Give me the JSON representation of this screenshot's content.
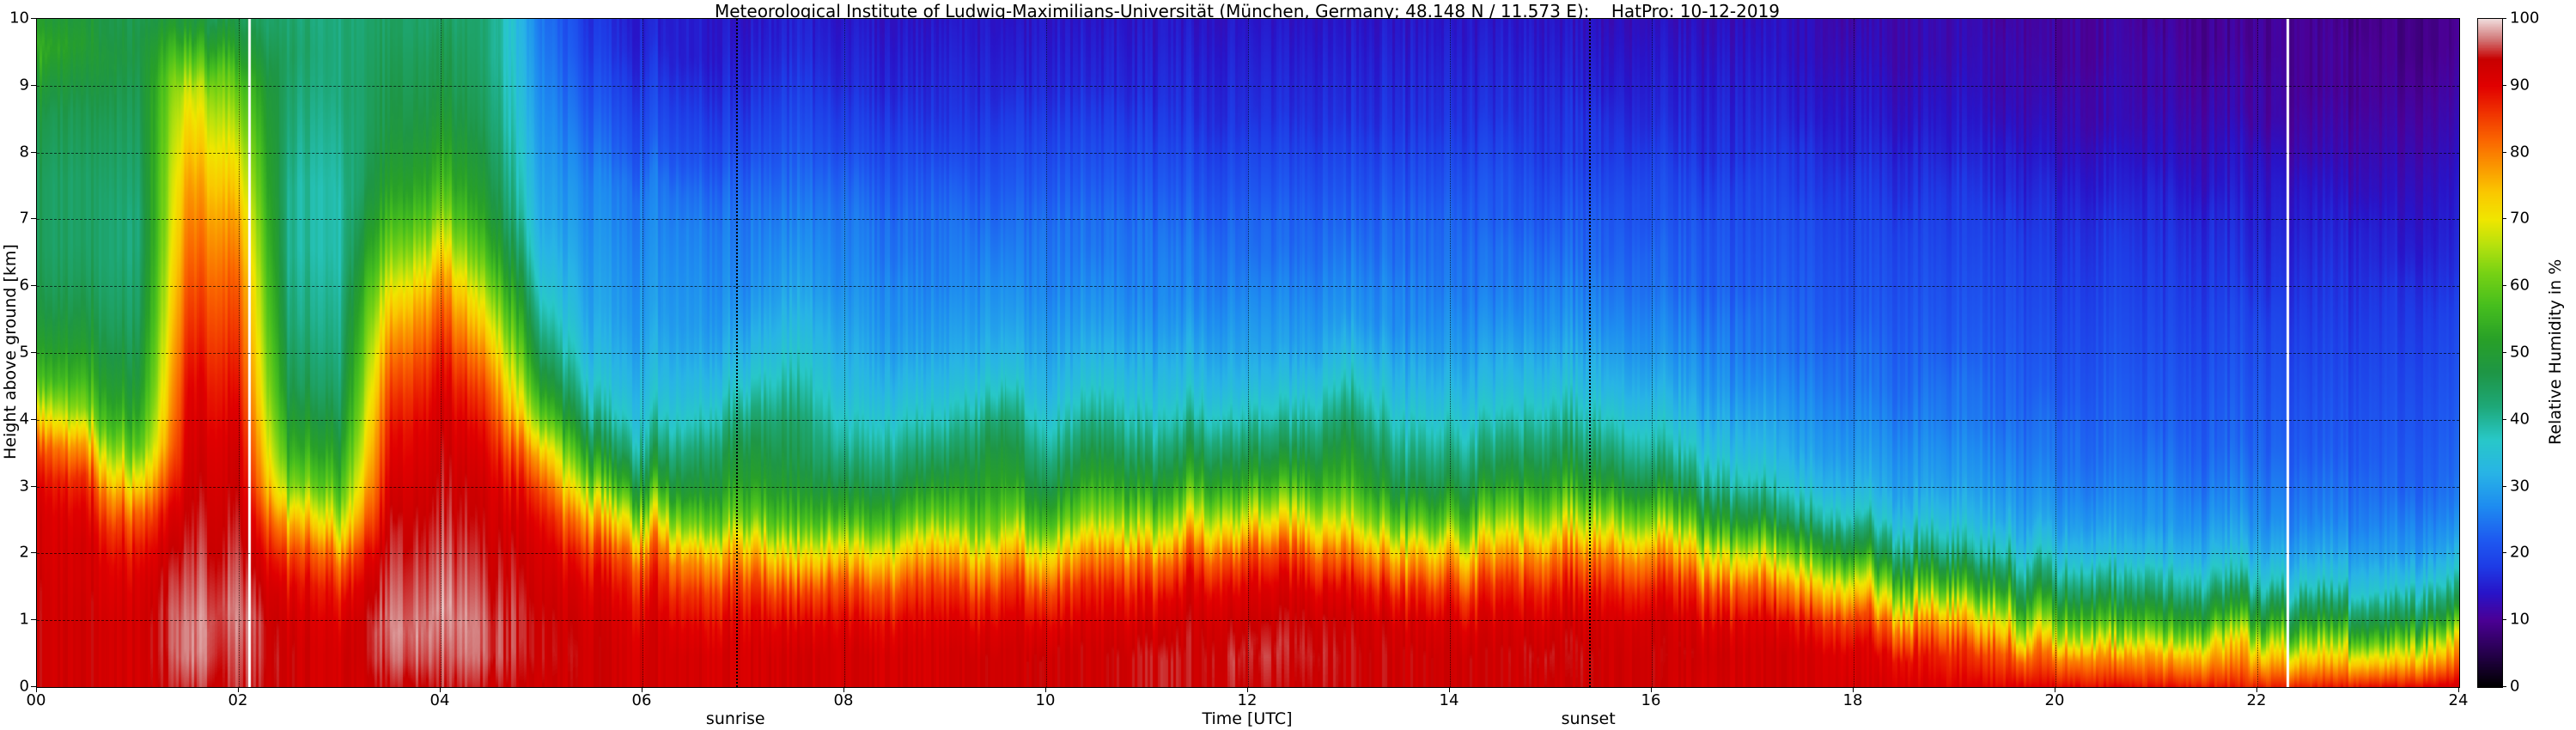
{
  "title": "Meteorological Institute of Ludwig-Maximilians-Universität (München, Germany; 48.148 N / 11.573 E):    HatPro: 10-12-2019",
  "axes": {
    "x_label": "Time [UTC]",
    "y_label": "Height above ground [km]",
    "x_tick_labels": [
      "00",
      "02",
      "04",
      "06",
      "08",
      "10",
      "12",
      "14",
      "16",
      "18",
      "20",
      "22",
      "24"
    ],
    "x_tick_hours": [
      0,
      2,
      4,
      6,
      8,
      10,
      12,
      14,
      16,
      18,
      20,
      22,
      24
    ],
    "y_tick_labels": [
      "0",
      "1",
      "2",
      "3",
      "4",
      "5",
      "6",
      "7",
      "8",
      "9",
      "10"
    ],
    "y_tick_km": [
      0,
      1,
      2,
      3,
      4,
      5,
      6,
      7,
      8,
      9,
      10
    ]
  },
  "colorbar": {
    "label": "Relative Humidity in %",
    "tick_labels": [
      "0",
      "10",
      "20",
      "30",
      "40",
      "50",
      "60",
      "70",
      "80",
      "90",
      "100"
    ],
    "tick_values": [
      0,
      10,
      20,
      30,
      40,
      50,
      60,
      70,
      80,
      90,
      100
    ]
  },
  "annotations": {
    "sunrise": {
      "t": 6.93,
      "label": "sunrise"
    },
    "sunset": {
      "t": 15.38,
      "label": "sunset"
    },
    "gaps": [
      2.1,
      22.3
    ]
  },
  "chart_data": {
    "type": "heatmap",
    "title": "HatPro microwave radiometer relative humidity time-height section, 10-12-2019",
    "xlabel": "Time [UTC]",
    "ylabel": "Height above ground [km]",
    "xlim": [
      0,
      24
    ],
    "ylim": [
      0,
      10
    ],
    "clim": [
      0,
      100
    ],
    "grid": true,
    "x_hours": [
      0,
      0.5,
      1,
      1.5,
      2,
      2.5,
      3,
      3.5,
      4,
      4.5,
      5,
      5.5,
      6,
      6.5,
      7,
      7.5,
      8,
      8.5,
      9,
      9.5,
      10,
      10.5,
      11,
      11.5,
      12,
      12.5,
      13,
      13.5,
      14,
      14.5,
      15,
      15.5,
      16,
      16.5,
      17,
      17.5,
      18,
      18.5,
      19,
      19.5,
      20,
      20.5,
      21,
      21.5,
      22,
      22.5,
      23,
      23.5,
      24
    ],
    "y_km": [
      0,
      0.5,
      1,
      1.5,
      2,
      2.5,
      3,
      3.5,
      4,
      4.5,
      5,
      5.5,
      6,
      6.5,
      7,
      7.5,
      8,
      8.5,
      9,
      9.5,
      10
    ],
    "values_percent": [
      [
        93,
        93,
        93,
        93,
        92,
        92,
        90,
        85,
        72,
        58,
        52,
        48,
        46,
        45,
        45,
        45,
        46,
        47,
        50,
        55,
        50
      ],
      [
        93,
        93,
        93,
        92,
        92,
        90,
        86,
        76,
        62,
        55,
        50,
        47,
        45,
        44,
        44,
        44,
        45,
        46,
        48,
        50,
        48
      ],
      [
        92,
        92,
        92,
        91,
        88,
        82,
        70,
        58,
        52,
        48,
        46,
        44,
        43,
        42,
        42,
        43,
        44,
        45,
        46,
        47,
        46
      ],
      [
        95,
        97,
        97,
        96,
        95,
        94,
        93,
        92,
        91,
        90,
        88,
        86,
        84,
        82,
        80,
        78,
        75,
        72,
        68,
        58,
        48
      ],
      [
        95,
        96,
        97,
        96,
        95,
        94,
        93,
        92,
        90,
        88,
        86,
        84,
        82,
        79,
        76,
        72,
        68,
        63,
        58,
        50,
        45
      ],
      [
        93,
        93,
        92,
        90,
        85,
        76,
        63,
        55,
        50,
        46,
        44,
        42,
        41,
        40,
        40,
        40,
        41,
        42,
        43,
        44,
        43
      ],
      [
        92,
        92,
        91,
        88,
        81,
        68,
        58,
        52,
        47,
        44,
        42,
        41,
        40,
        39,
        39,
        39,
        40,
        41,
        42,
        42,
        42
      ],
      [
        94,
        96,
        97,
        96,
        95,
        94,
        92,
        90,
        88,
        85,
        81,
        76,
        70,
        63,
        57,
        52,
        49,
        47,
        46,
        45,
        44
      ],
      [
        95,
        97,
        98,
        97,
        96,
        95,
        94,
        93,
        92,
        90,
        87,
        83,
        78,
        70,
        62,
        56,
        52,
        49,
        47,
        46,
        44
      ],
      [
        94,
        96,
        96,
        95,
        94,
        93,
        92,
        90,
        87,
        83,
        77,
        70,
        63,
        56,
        51,
        48,
        46,
        44,
        43,
        42,
        42
      ],
      [
        93,
        94,
        94,
        93,
        92,
        90,
        85,
        76,
        62,
        52,
        45,
        40,
        36,
        33,
        31,
        30,
        29,
        28,
        27,
        26,
        25
      ],
      [
        93,
        93,
        92,
        90,
        85,
        75,
        60,
        48,
        40,
        35,
        32,
        30,
        29,
        28,
        27,
        26,
        24,
        22,
        20,
        18,
        17
      ],
      [
        92,
        92,
        91,
        88,
        82,
        68,
        52,
        42,
        36,
        33,
        31,
        29,
        28,
        27,
        26,
        25,
        22,
        20,
        18,
        16,
        15
      ],
      [
        92,
        92,
        90,
        86,
        78,
        62,
        50,
        44,
        38,
        34,
        31,
        29,
        28,
        27,
        26,
        24,
        21,
        19,
        17,
        15,
        15
      ],
      [
        92,
        92,
        90,
        85,
        75,
        60,
        52,
        48,
        42,
        36,
        32,
        29,
        27,
        26,
        25,
        23,
        20,
        18,
        16,
        15,
        14
      ],
      [
        92,
        92,
        90,
        84,
        72,
        58,
        50,
        46,
        44,
        40,
        36,
        33,
        30,
        28,
        26,
        24,
        22,
        20,
        18,
        16,
        15
      ],
      [
        92,
        92,
        89,
        83,
        70,
        55,
        46,
        40,
        36,
        33,
        31,
        29,
        27,
        26,
        25,
        23,
        20,
        18,
        16,
        15,
        14
      ],
      [
        92,
        92,
        90,
        84,
        73,
        58,
        48,
        42,
        37,
        33,
        30,
        28,
        27,
        25,
        24,
        22,
        20,
        18,
        16,
        15,
        14
      ],
      [
        92,
        92,
        90,
        85,
        75,
        60,
        50,
        43,
        37,
        33,
        30,
        28,
        26,
        25,
        24,
        22,
        19,
        17,
        16,
        15,
        14
      ],
      [
        93,
        93,
        91,
        86,
        76,
        62,
        54,
        50,
        45,
        38,
        33,
        30,
        28,
        26,
        24,
        22,
        20,
        18,
        16,
        15,
        14
      ],
      [
        93,
        93,
        90,
        84,
        72,
        57,
        47,
        41,
        36,
        32,
        30,
        28,
        26,
        25,
        24,
        22,
        20,
        18,
        16,
        15,
        14
      ],
      [
        93,
        93,
        91,
        87,
        78,
        64,
        54,
        47,
        41,
        36,
        32,
        29,
        27,
        25,
        24,
        22,
        20,
        18,
        16,
        15,
        14
      ],
      [
        94,
        94,
        92,
        88,
        80,
        65,
        52,
        44,
        38,
        34,
        31,
        28,
        26,
        25,
        24,
        22,
        20,
        18,
        16,
        15,
        14
      ],
      [
        94,
        94,
        93,
        90,
        82,
        68,
        55,
        46,
        39,
        34,
        31,
        28,
        26,
        25,
        23,
        21,
        19,
        17,
        16,
        15,
        14
      ],
      [
        94,
        95,
        93,
        90,
        83,
        68,
        54,
        45,
        38,
        33,
        30,
        28,
        26,
        24,
        23,
        21,
        19,
        17,
        16,
        15,
        14
      ],
      [
        94,
        95,
        94,
        91,
        84,
        70,
        56,
        46,
        39,
        34,
        30,
        28,
        26,
        24,
        23,
        21,
        19,
        17,
        16,
        15,
        14
      ],
      [
        94,
        94,
        93,
        89,
        80,
        66,
        56,
        50,
        44,
        38,
        33,
        29,
        27,
        25,
        23,
        21,
        19,
        17,
        16,
        15,
        14
      ],
      [
        93,
        93,
        92,
        87,
        76,
        60,
        48,
        42,
        37,
        33,
        30,
        27,
        26,
        24,
        23,
        21,
        19,
        17,
        16,
        15,
        14
      ],
      [
        93,
        93,
        91,
        85,
        74,
        58,
        47,
        41,
        36,
        32,
        29,
        27,
        25,
        24,
        23,
        21,
        19,
        17,
        16,
        15,
        14
      ],
      [
        93,
        93,
        91,
        86,
        76,
        62,
        50,
        43,
        37,
        33,
        30,
        27,
        25,
        24,
        22,
        21,
        19,
        17,
        16,
        15,
        14
      ],
      [
        93,
        94,
        92,
        88,
        80,
        66,
        54,
        46,
        40,
        35,
        31,
        28,
        26,
        24,
        22,
        20,
        18,
        17,
        16,
        15,
        14
      ],
      [
        93,
        93,
        92,
        88,
        80,
        66,
        52,
        44,
        38,
        33,
        30,
        27,
        25,
        23,
        22,
        20,
        18,
        17,
        15,
        14,
        13
      ],
      [
        93,
        93,
        92,
        87,
        78,
        62,
        48,
        40,
        35,
        31,
        28,
        26,
        24,
        23,
        21,
        20,
        18,
        16,
        15,
        14,
        13
      ],
      [
        92,
        93,
        91,
        85,
        72,
        55,
        43,
        36,
        32,
        29,
        27,
        25,
        23,
        22,
        21,
        19,
        17,
        16,
        15,
        14,
        13
      ],
      [
        92,
        92,
        90,
        82,
        66,
        48,
        38,
        33,
        30,
        27,
        25,
        24,
        22,
        21,
        20,
        19,
        17,
        16,
        15,
        14,
        13
      ],
      [
        92,
        92,
        88,
        76,
        58,
        42,
        34,
        30,
        28,
        26,
        24,
        23,
        22,
        21,
        20,
        18,
        17,
        15,
        14,
        13,
        13
      ],
      [
        92,
        91,
        85,
        70,
        50,
        38,
        32,
        29,
        27,
        25,
        24,
        22,
        21,
        20,
        19,
        18,
        16,
        15,
        14,
        13,
        12
      ],
      [
        91,
        89,
        80,
        62,
        45,
        35,
        30,
        28,
        26,
        24,
        23,
        22,
        21,
        20,
        19,
        17,
        16,
        14,
        13,
        12,
        12
      ],
      [
        90,
        86,
        75,
        55,
        40,
        33,
        29,
        27,
        25,
        24,
        22,
        21,
        20,
        19,
        18,
        17,
        15,
        14,
        13,
        12,
        12
      ],
      [
        90,
        83,
        68,
        50,
        38,
        31,
        28,
        26,
        24,
        23,
        22,
        21,
        20,
        19,
        18,
        16,
        15,
        13,
        12,
        12,
        11
      ],
      [
        90,
        80,
        62,
        46,
        36,
        30,
        27,
        25,
        24,
        22,
        21,
        20,
        19,
        18,
        17,
        16,
        14,
        13,
        12,
        11,
        11
      ],
      [
        89,
        78,
        58,
        44,
        34,
        29,
        26,
        24,
        23,
        22,
        21,
        20,
        19,
        18,
        17,
        15,
        14,
        12,
        12,
        11,
        11
      ],
      [
        88,
        76,
        56,
        42,
        33,
        28,
        26,
        24,
        22,
        21,
        20,
        19,
        18,
        17,
        16,
        15,
        13,
        12,
        11,
        11,
        10
      ],
      [
        88,
        74,
        53,
        40,
        32,
        28,
        25,
        23,
        22,
        21,
        20,
        19,
        18,
        17,
        16,
        14,
        13,
        12,
        11,
        10,
        10
      ],
      [
        87,
        72,
        52,
        38,
        31,
        27,
        25,
        23,
        22,
        21,
        20,
        19,
        17,
        16,
        15,
        14,
        13,
        11,
        11,
        10,
        10
      ],
      [
        87,
        70,
        50,
        37,
        30,
        26,
        24,
        22,
        21,
        20,
        19,
        18,
        17,
        16,
        15,
        14,
        12,
        11,
        10,
        10,
        10
      ],
      [
        88,
        70,
        49,
        36,
        30,
        26,
        24,
        22,
        21,
        20,
        19,
        18,
        17,
        16,
        15,
        13,
        12,
        11,
        10,
        10,
        9
      ],
      [
        89,
        70,
        48,
        36,
        29,
        26,
        23,
        22,
        21,
        20,
        19,
        18,
        17,
        15,
        14,
        13,
        12,
        11,
        10,
        9,
        9
      ],
      [
        91,
        72,
        48,
        36,
        29,
        25,
        23,
        22,
        21,
        20,
        19,
        18,
        16,
        15,
        14,
        13,
        12,
        11,
        10,
        9,
        9
      ]
    ],
    "colormap_stops": [
      [
        0,
        "#000000"
      ],
      [
        5,
        "#26004d"
      ],
      [
        10,
        "#4b0096"
      ],
      [
        14,
        "#2814c8"
      ],
      [
        18,
        "#1e3ce6"
      ],
      [
        22,
        "#1e5af0"
      ],
      [
        27,
        "#1e8cf0"
      ],
      [
        32,
        "#28b4e6"
      ],
      [
        37,
        "#28c8c8"
      ],
      [
        42,
        "#1ea878"
      ],
      [
        47,
        "#1e9646"
      ],
      [
        52,
        "#28a028"
      ],
      [
        57,
        "#46be1e"
      ],
      [
        62,
        "#78d214"
      ],
      [
        66,
        "#b4e10e"
      ],
      [
        70,
        "#f0e600"
      ],
      [
        74,
        "#fac800"
      ],
      [
        78,
        "#fa9600"
      ],
      [
        82,
        "#fa6400"
      ],
      [
        86,
        "#f03200"
      ],
      [
        90,
        "#e10000"
      ],
      [
        94,
        "#c80000"
      ],
      [
        97,
        "#d27878"
      ],
      [
        100,
        "#f0dcdc"
      ]
    ],
    "legend_position": "right colorbar"
  }
}
